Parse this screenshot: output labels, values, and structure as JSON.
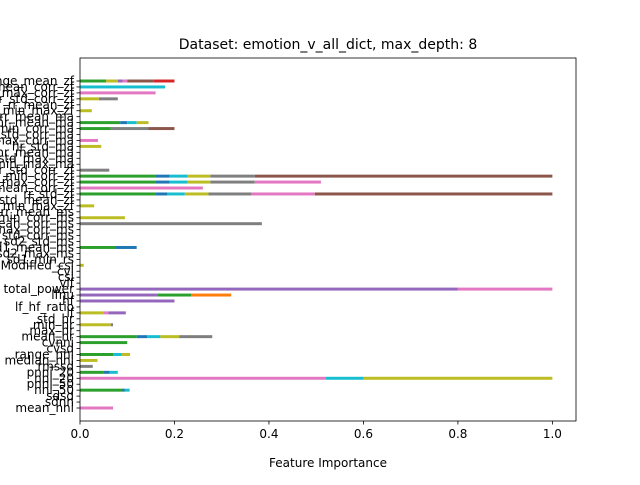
{
  "chart_data": {
    "type": "bar",
    "orientation": "horizontal",
    "stacked": true,
    "title": "Dataset: emotion_v_all_dict, max_depth: 8",
    "xlabel": "Feature Importance",
    "ylabel": "",
    "xlim": [
      0,
      1.05
    ],
    "xticks": [
      0.0,
      0.2,
      0.4,
      0.6,
      0.8,
      1.0
    ],
    "xtick_labels": [
      "0.0",
      "0.2",
      "0.4",
      "0.6",
      "0.8",
      "1.0"
    ],
    "grid": false,
    "legend": "none",
    "rows": [
      {
        "label": "mean_nni",
        "segs": [
          {
            "c": "#e377c2",
            "v": 0.07
          }
        ]
      },
      {
        "label": "sdnn",
        "segs": []
      },
      {
        "label": "sdsd",
        "segs": []
      },
      {
        "label": "nni_50",
        "segs": [
          {
            "c": "#2ca02c",
            "v": 0.09
          },
          {
            "c": "#1f77b4",
            "v": 0.005
          },
          {
            "c": "#17becf",
            "v": 0.01
          }
        ]
      },
      {
        "label": "pnni_50",
        "segs": []
      },
      {
        "label": "nni_20",
        "segs": [
          {
            "c": "#e377c2",
            "v": 0.52
          },
          {
            "c": "#17becf",
            "v": 0.08
          },
          {
            "c": "#bcbd22",
            "v": 0.4
          }
        ]
      },
      {
        "label": "pnni_20",
        "segs": [
          {
            "c": "#2ca02c",
            "v": 0.05
          },
          {
            "c": "#1f77b4",
            "v": 0.013
          },
          {
            "c": "#17becf",
            "v": 0.017
          }
        ]
      },
      {
        "label": "rmssd",
        "segs": [
          {
            "c": "#7f7f7f",
            "v": 0.027
          }
        ]
      },
      {
        "label": "median_nni",
        "segs": [
          {
            "c": "#bcbd22",
            "v": 0.037
          }
        ]
      },
      {
        "label": "range_nni",
        "segs": [
          {
            "c": "#2ca02c",
            "v": 0.07
          },
          {
            "c": "#17becf",
            "v": 0.018
          },
          {
            "c": "#bcbd22",
            "v": 0.018
          }
        ]
      },
      {
        "label": "cvsd",
        "segs": []
      },
      {
        "label": "cvnni",
        "segs": [
          {
            "c": "#2ca02c",
            "v": 0.1
          }
        ]
      },
      {
        "label": "mean_hr",
        "segs": [
          {
            "c": "#2ca02c",
            "v": 0.12
          },
          {
            "c": "#1f77b4",
            "v": 0.022
          },
          {
            "c": "#17becf",
            "v": 0.028
          },
          {
            "c": "#bcbd22",
            "v": 0.04
          },
          {
            "c": "#7f7f7f",
            "v": 0.07
          }
        ]
      },
      {
        "label": "max_hr",
        "segs": []
      },
      {
        "label": "min_hr",
        "segs": [
          {
            "c": "#bcbd22",
            "v": 0.065
          },
          {
            "c": "#7f7f7f",
            "v": 0.005
          }
        ]
      },
      {
        "label": "std_hr",
        "segs": []
      },
      {
        "label": "lf",
        "segs": [
          {
            "c": "#bcbd22",
            "v": 0.05
          },
          {
            "c": "#e377c2",
            "v": 0.01
          },
          {
            "c": "#9467bd",
            "v": 0.037
          }
        ]
      },
      {
        "label": "lf_hf_ratio",
        "segs": []
      },
      {
        "label": "hf",
        "segs": [
          {
            "c": "#9467bd",
            "v": 0.2
          }
        ]
      },
      {
        "label": "lfnu",
        "segs": [
          {
            "c": "#9467bd",
            "v": 0.165
          },
          {
            "c": "#2ca02c",
            "v": 0.07
          },
          {
            "c": "#ff7f0e",
            "v": 0.085
          }
        ]
      },
      {
        "label": "total_power",
        "segs": [
          {
            "c": "#9467bd",
            "v": 0.8
          },
          {
            "c": "#e377c2",
            "v": 0.2
          }
        ]
      },
      {
        "label": "vlf",
        "segs": []
      },
      {
        "label": "csi",
        "segs": []
      },
      {
        "label": "cvi",
        "segs": []
      },
      {
        "label": "Modified_csi",
        "segs": [
          {
            "c": "#bcbd22",
            "v": 0.008
          }
        ]
      },
      {
        "label": "sd1_min_rs",
        "segs": []
      },
      {
        "label": "sd2_max_ms",
        "segs": []
      },
      {
        "label": "sd1_mean_ms",
        "segs": [
          {
            "c": "#2ca02c",
            "v": 0.075
          },
          {
            "c": "#1f77b4",
            "v": 0.045
          }
        ]
      },
      {
        "label": "sd2_std_ms",
        "segs": []
      },
      {
        "label": "hr_std_corr_ms",
        "segs": []
      },
      {
        "label": "hr_max_corr_ms",
        "segs": []
      },
      {
        "label": "hr_mean_corr_ms",
        "segs": [
          {
            "c": "#7f7f7f",
            "v": 0.385
          }
        ]
      },
      {
        "label": "hr_min_corr_ms",
        "segs": [
          {
            "c": "#bcbd22",
            "v": 0.095
          }
        ]
      },
      {
        "label": "rr_mean_ms",
        "segs": []
      },
      {
        "label": "rr_min_max_zf",
        "segs": [
          {
            "c": "#bcbd22",
            "v": 0.03
          }
        ]
      },
      {
        "label": "rr_std_mean_zf",
        "segs": []
      },
      {
        "label": "rr_std_zf",
        "segs": [
          {
            "c": "#2ca02c",
            "v": 0.16
          },
          {
            "c": "#1f77b4",
            "v": 0.025
          },
          {
            "c": "#17becf",
            "v": 0.037
          },
          {
            "c": "#bcbd22",
            "v": 0.05
          },
          {
            "c": "#7f7f7f",
            "v": 0.09
          },
          {
            "c": "#e377c2",
            "v": 0.135
          },
          {
            "c": "#8c564b",
            "v": 0.503
          }
        ]
      },
      {
        "label": "rr_mean_corr_zf",
        "segs": [
          {
            "c": "#e377c2",
            "v": 0.26
          }
        ]
      },
      {
        "label": "rr_max_corr_zf",
        "segs": [
          {
            "c": "#2ca02c",
            "v": 0.16
          },
          {
            "c": "#1f77b4",
            "v": 0.03
          },
          {
            "c": "#17becf",
            "v": 0.038
          },
          {
            "c": "#bcbd22",
            "v": 0.048
          },
          {
            "c": "#7f7f7f",
            "v": 0.094
          },
          {
            "c": "#e377c2",
            "v": 0.14
          }
        ]
      },
      {
        "label": "rr_min_corr_zf",
        "segs": [
          {
            "c": "#2ca02c",
            "v": 0.16
          },
          {
            "c": "#1f77b4",
            "v": 0.03
          },
          {
            "c": "#17becf",
            "v": 0.038
          },
          {
            "c": "#bcbd22",
            "v": 0.048
          },
          {
            "c": "#7f7f7f",
            "v": 0.094
          },
          {
            "c": "#8c564b",
            "v": 0.63
          }
        ]
      },
      {
        "label": "hr_std_corr_zf",
        "segs": [
          {
            "c": "#7f7f7f",
            "v": 0.062
          }
        ]
      },
      {
        "label": "hr_min_max_ma",
        "segs": []
      },
      {
        "label": "hr_std_max_ma",
        "segs": []
      },
      {
        "label": "hr_mean_ma",
        "segs": []
      },
      {
        "label": "hr_std_ma",
        "segs": [
          {
            "c": "#bcbd22",
            "v": 0.045
          }
        ]
      },
      {
        "label": "hr_max_corr_ma",
        "segs": [
          {
            "c": "#e377c2",
            "v": 0.038
          }
        ]
      },
      {
        "label": "hr_std_corr_ma",
        "segs": []
      },
      {
        "label": "hr_min_corr_ma",
        "segs": [
          {
            "c": "#2ca02c",
            "v": 0.065
          },
          {
            "c": "#7f7f7f",
            "v": 0.08
          },
          {
            "c": "#8c564b",
            "v": 0.055
          }
        ]
      },
      {
        "label": "hr_mean_ma",
        "segs": [
          {
            "c": "#2ca02c",
            "v": 0.085
          },
          {
            "c": "#1f77b4",
            "v": 0.015
          },
          {
            "c": "#17becf",
            "v": 0.02
          },
          {
            "c": "#bcbd22",
            "v": 0.025
          }
        ]
      },
      {
        "label": "rr_mean_ma",
        "segs": []
      },
      {
        "label": "rr_min_max_zf",
        "segs": [
          {
            "c": "#bcbd22",
            "v": 0.025
          }
        ]
      },
      {
        "label": "rr_mean_zf",
        "segs": []
      },
      {
        "label": "rr_std_corr_zf",
        "segs": [
          {
            "c": "#bcbd22",
            "v": 0.04
          },
          {
            "c": "#7f7f7f",
            "v": 0.04
          }
        ]
      },
      {
        "label": "rr_max_corr_zf",
        "segs": [
          {
            "c": "#e377c2",
            "v": 0.16
          }
        ]
      },
      {
        "label": "rr_mean_corr_zf",
        "segs": [
          {
            "c": "#17becf",
            "v": 0.18
          }
        ]
      },
      {
        "label": "rr_range_mean_zf",
        "segs": [
          {
            "c": "#2ca02c",
            "v": 0.055
          },
          {
            "c": "#bcbd22",
            "v": 0.025
          },
          {
            "c": "#9467bd",
            "v": 0.01
          },
          {
            "c": "#e377c2",
            "v": 0.01
          },
          {
            "c": "#8c564b",
            "v": 0.055
          },
          {
            "c": "#d62728",
            "v": 0.045
          }
        ]
      }
    ]
  }
}
